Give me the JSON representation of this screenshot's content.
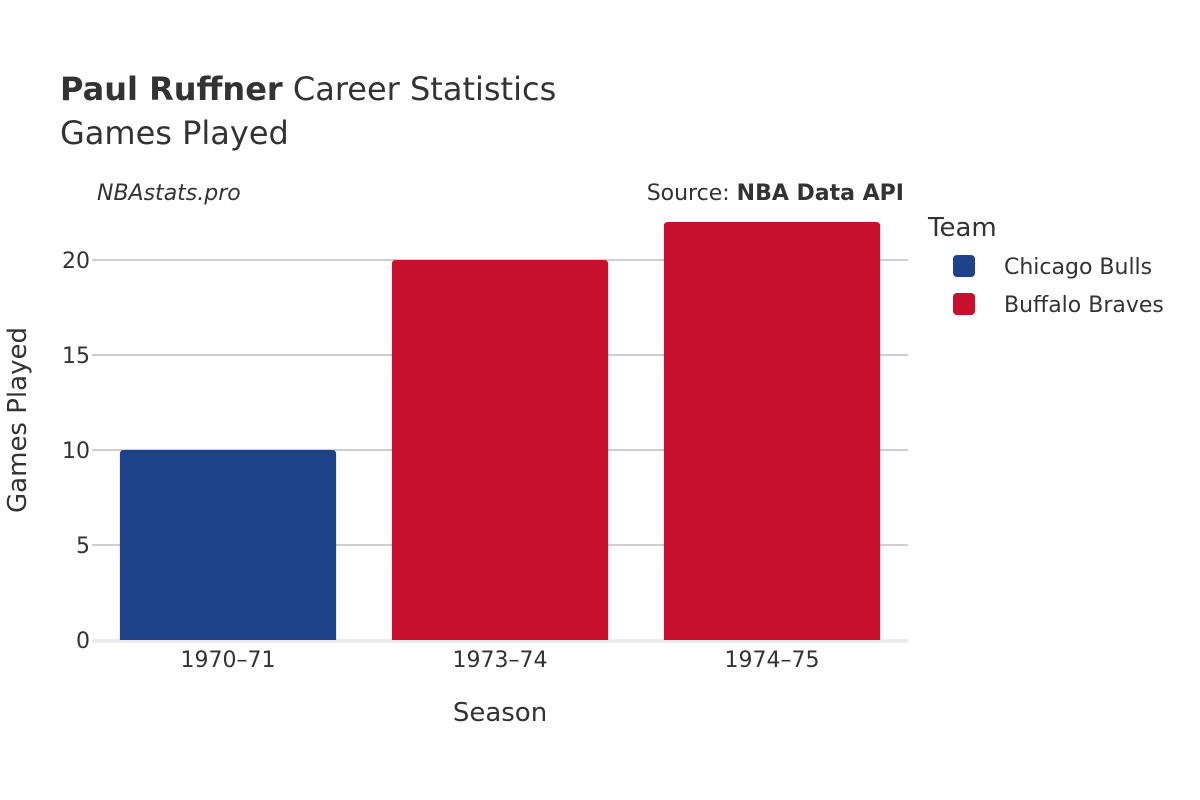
{
  "title": {
    "bold": "Paul Ruffner",
    "rest": " Career Statistics",
    "subtitle": "Games Played"
  },
  "watermark": "NBAstats.pro",
  "source": {
    "prefix": "Source: ",
    "name": "NBA Data API"
  },
  "legend": {
    "title": "Team",
    "items": [
      {
        "label": "Chicago Bulls",
        "color": "#1d428a"
      },
      {
        "label": "Buffalo Braves",
        "color": "#c8102e"
      }
    ]
  },
  "chart_data": {
    "type": "bar",
    "xlabel": "Season",
    "ylabel": "Games Played",
    "categories": [
      "1970–71",
      "1973–74",
      "1974–75"
    ],
    "values": [
      10,
      20,
      22
    ],
    "teams": [
      "Chicago Bulls",
      "Buffalo Braves",
      "Buffalo Braves"
    ],
    "ylim": [
      0,
      22
    ],
    "yticks": [
      0,
      5,
      10,
      15,
      20
    ],
    "grid": true,
    "legend_position": "right"
  }
}
